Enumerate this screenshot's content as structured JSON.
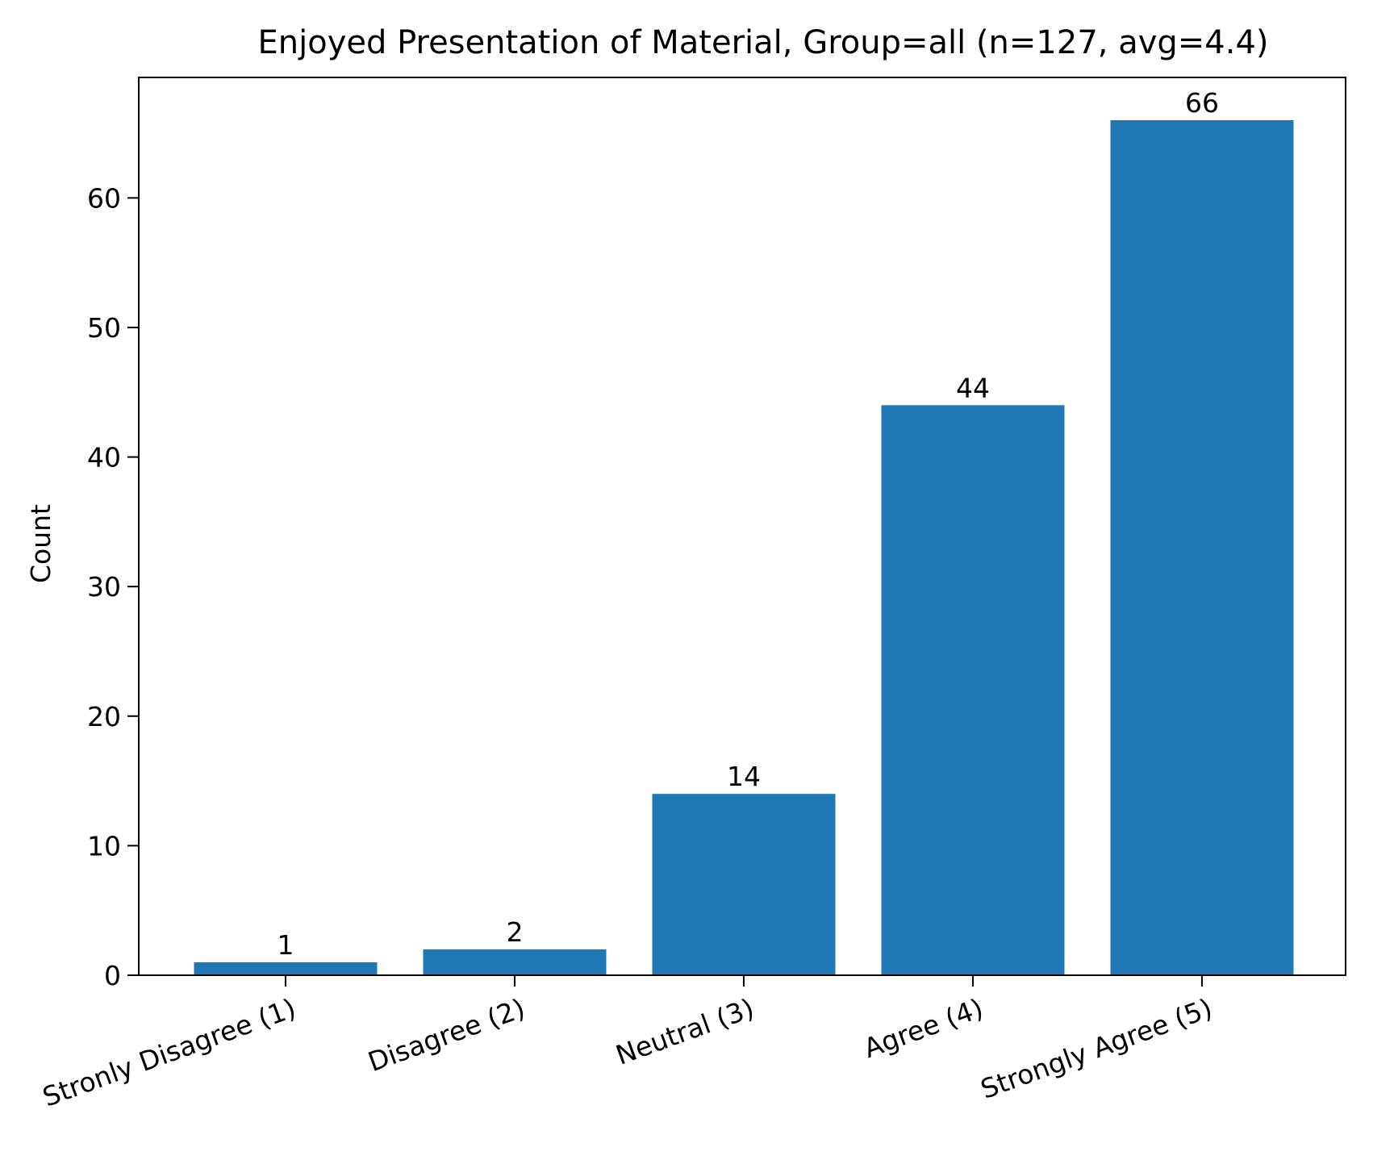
{
  "chart_data": {
    "type": "bar",
    "title": "Enjoyed Presentation of Material, Group=all (n=127, avg=4.4)",
    "xlabel": "",
    "ylabel": "Count",
    "categories": [
      "Stronly Disagree (1)",
      "Disagree (2)",
      "Neutral (3)",
      "Agree (4)",
      "Strongly Agree (5)"
    ],
    "values": [
      1,
      2,
      14,
      44,
      66
    ],
    "data_labels": [
      "1",
      "2",
      "14",
      "44",
      "66"
    ],
    "ylim": [
      0,
      69.3
    ],
    "yticks": [
      0,
      10,
      20,
      30,
      40,
      50,
      60
    ],
    "ytick_labels": [
      "0",
      "10",
      "20",
      "30",
      "40",
      "50",
      "60"
    ],
    "bar_color": "#1f77b4",
    "grid": false,
    "legend": "none"
  }
}
